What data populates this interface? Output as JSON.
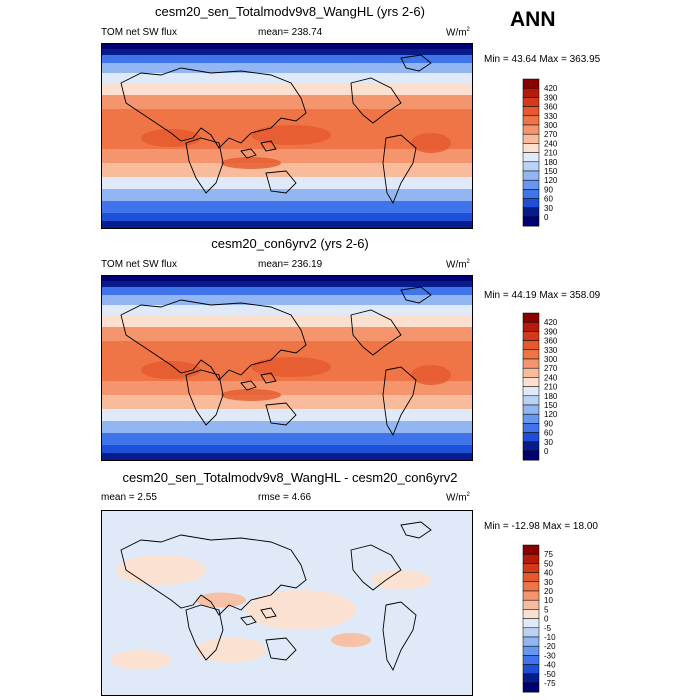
{
  "season": "ANN",
  "panels": [
    {
      "title": "cesm20_sen_Totalmodv9v8_WangHL (yrs 2-6)",
      "left_label": "TOM net SW flux",
      "center_label": "mean=  238.74",
      "units_base": "W/m",
      "units_sup": "2",
      "minmax": "Min =  43.64 Max = 363.95",
      "kind": "field",
      "levels": [
        "420",
        "390",
        "360",
        "330",
        "300",
        "270",
        "240",
        "210",
        "180",
        "150",
        "120",
        "90",
        "60",
        "30",
        "0"
      ]
    },
    {
      "title": "cesm20_con6yrv2 (yrs 2-6)",
      "left_label": "TOM net SW flux",
      "center_label": "mean=  236.19",
      "units_base": "W/m",
      "units_sup": "2",
      "minmax": "Min =  44.19 Max = 358.09",
      "kind": "field",
      "levels": [
        "420",
        "390",
        "360",
        "330",
        "300",
        "270",
        "240",
        "210",
        "180",
        "150",
        "120",
        "90",
        "60",
        "30",
        "0"
      ]
    },
    {
      "title": "cesm20_sen_Totalmodv9v8_WangHL - cesm20_con6yrv2",
      "left_label": "mean =   2.55",
      "center_label": "rmse =   4.66",
      "units_base": "W/m",
      "units_sup": "2",
      "minmax": "Min = -12.98 Max =  18.00",
      "kind": "diff",
      "levels": [
        "75",
        "50",
        "40",
        "30",
        "20",
        "10",
        "5",
        "0",
        "-5",
        "-10",
        "-20",
        "-30",
        "-40",
        "-50",
        "-75"
      ]
    }
  ],
  "colors": {
    "field": [
      "#8b0000",
      "#b51a0a",
      "#d33a18",
      "#e5592d",
      "#ef7446",
      "#f4956d",
      "#f8bc9d",
      "#fbe0cf",
      "#dfe9f7",
      "#bad2f4",
      "#91b6f2",
      "#6897ef",
      "#3f74ea",
      "#1d4fd8",
      "#061c8c",
      "#000070"
    ],
    "diff": [
      "#8b0000",
      "#b51a0a",
      "#d33a18",
      "#e5592d",
      "#ef7446",
      "#f4956d",
      "#f8bc9d",
      "#fbe0cf",
      "#dfe9f7",
      "#bad2f4",
      "#91b6f2",
      "#6897ef",
      "#3f74ea",
      "#1d4fd8",
      "#061c8c",
      "#000070"
    ]
  }
}
